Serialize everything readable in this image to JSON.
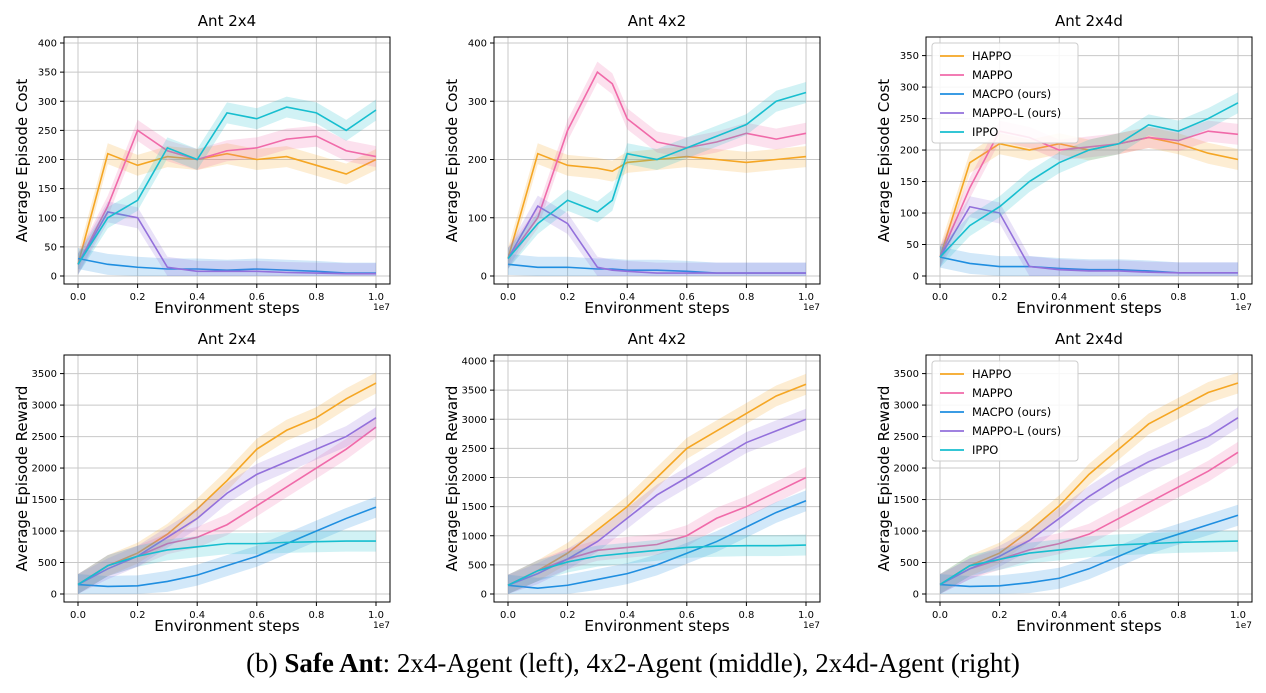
{
  "caption": {
    "prefix": "(b) ",
    "bold": "Safe Ant",
    "rest": ": 2x4-Agent (left), 4x2-Agent (middle), 2x4d-Agent (right)"
  },
  "colors": {
    "HAPPO": "#f5a623",
    "MAPPO": "#f06aa9",
    "MACPO (ours)": "#1f8ee0",
    "MAPPO-L (ours)": "#9370db",
    "IPPO": "#17becf"
  },
  "chart_data": [
    {
      "type": "line",
      "title": "Ant 2x4",
      "xlabel": "Environment steps",
      "ylabel": "Average Episode Cost",
      "x_multiplier": "1e7",
      "xlim": [
        0,
        1.0
      ],
      "ylim": [
        0,
        400
      ],
      "xticks": [
        "0.0",
        "0.2",
        "0.4",
        "0.6",
        "0.8",
        "1.0"
      ],
      "yticks": [
        0,
        50,
        100,
        150,
        200,
        250,
        300,
        350,
        400
      ],
      "grid": true,
      "legend": null,
      "x": [
        0,
        0.1,
        0.2,
        0.3,
        0.4,
        0.5,
        0.6,
        0.7,
        0.8,
        0.9,
        1.0
      ],
      "series": [
        {
          "name": "HAPPO",
          "values": [
            20,
            210,
            190,
            205,
            200,
            210,
            200,
            205,
            190,
            175,
            200
          ]
        },
        {
          "name": "MAPPO",
          "values": [
            20,
            120,
            250,
            215,
            200,
            215,
            220,
            235,
            240,
            215,
            205
          ]
        },
        {
          "name": "MACPO (ours)",
          "values": [
            30,
            20,
            15,
            12,
            12,
            10,
            12,
            10,
            8,
            5,
            5
          ]
        },
        {
          "name": "MAPPO-L (ours)",
          "values": [
            20,
            110,
            100,
            15,
            8,
            8,
            8,
            6,
            5,
            4,
            4
          ]
        },
        {
          "name": "IPPO",
          "values": [
            20,
            100,
            130,
            220,
            200,
            280,
            270,
            290,
            280,
            250,
            285
          ]
        }
      ]
    },
    {
      "type": "line",
      "title": "Ant 4x2",
      "xlabel": "Environment steps",
      "ylabel": "Average Episode Cost",
      "x_multiplier": "1e7",
      "xlim": [
        0,
        1.0
      ],
      "ylim": [
        0,
        400
      ],
      "xticks": [
        "0.0",
        "0.2",
        "0.4",
        "0.6",
        "0.8",
        "1.0"
      ],
      "yticks": [
        0,
        100,
        200,
        300,
        400
      ],
      "grid": true,
      "legend": null,
      "x": [
        0,
        0.1,
        0.2,
        0.3,
        0.35,
        0.4,
        0.5,
        0.6,
        0.7,
        0.8,
        0.9,
        1.0
      ],
      "series": [
        {
          "name": "HAPPO",
          "values": [
            30,
            210,
            190,
            185,
            180,
            195,
            200,
            205,
            200,
            195,
            200,
            205
          ]
        },
        {
          "name": "MAPPO",
          "values": [
            30,
            100,
            250,
            350,
            330,
            270,
            230,
            220,
            230,
            245,
            235,
            245
          ]
        },
        {
          "name": "MACPO (ours)",
          "values": [
            20,
            15,
            15,
            12,
            12,
            10,
            10,
            8,
            5,
            5,
            5,
            5
          ]
        },
        {
          "name": "MAPPO-L (ours)",
          "values": [
            30,
            120,
            90,
            15,
            10,
            8,
            5,
            5,
            5,
            5,
            5,
            5
          ]
        },
        {
          "name": "IPPO",
          "values": [
            30,
            90,
            130,
            110,
            130,
            210,
            200,
            220,
            240,
            260,
            300,
            315
          ]
        }
      ]
    },
    {
      "type": "line",
      "title": "Ant 2x4d",
      "xlabel": "Environment steps",
      "ylabel": "Average Episode Cost",
      "x_multiplier": "1e7",
      "xlim": [
        0,
        1.0
      ],
      "ylim": [
        0,
        370
      ],
      "xticks": [
        "0.0",
        "0.2",
        "0.4",
        "0.6",
        "0.8",
        "1.0"
      ],
      "yticks": [
        0,
        50,
        100,
        150,
        200,
        250,
        300,
        350
      ],
      "grid": true,
      "legend": "top-left",
      "x": [
        0,
        0.1,
        0.2,
        0.3,
        0.4,
        0.5,
        0.6,
        0.7,
        0.8,
        0.9,
        1.0
      ],
      "series": [
        {
          "name": "HAPPO",
          "values": [
            30,
            180,
            210,
            200,
            210,
            200,
            210,
            220,
            210,
            195,
            185
          ]
        },
        {
          "name": "MAPPO",
          "values": [
            30,
            140,
            230,
            220,
            200,
            205,
            210,
            220,
            215,
            230,
            225
          ]
        },
        {
          "name": "MACPO (ours)",
          "values": [
            30,
            20,
            15,
            15,
            12,
            10,
            10,
            8,
            5,
            5,
            5
          ]
        },
        {
          "name": "MAPPO-L (ours)",
          "values": [
            30,
            110,
            100,
            15,
            10,
            8,
            8,
            6,
            5,
            5,
            5
          ]
        },
        {
          "name": "IPPO",
          "values": [
            30,
            80,
            110,
            150,
            180,
            200,
            210,
            240,
            230,
            250,
            275
          ]
        }
      ]
    },
    {
      "type": "line",
      "title": "Ant 2x4",
      "xlabel": "Environment steps",
      "ylabel": "Average Episode Reward",
      "x_multiplier": "1e7",
      "xlim": [
        0,
        1.0
      ],
      "ylim": [
        0,
        3700
      ],
      "xticks": [
        "0.0",
        "0.2",
        "0.4",
        "0.6",
        "0.8",
        "1.0"
      ],
      "yticks": [
        0,
        500,
        1000,
        1500,
        2000,
        2500,
        3000,
        3500
      ],
      "grid": true,
      "legend": null,
      "x": [
        0,
        0.1,
        0.2,
        0.3,
        0.4,
        0.5,
        0.6,
        0.7,
        0.8,
        0.9,
        1.0
      ],
      "series": [
        {
          "name": "HAPPO",
          "values": [
            150,
            450,
            650,
            950,
            1350,
            1800,
            2300,
            2600,
            2800,
            3100,
            3350
          ]
        },
        {
          "name": "MAPPO",
          "values": [
            150,
            450,
            600,
            800,
            900,
            1100,
            1400,
            1700,
            2000,
            2300,
            2650
          ]
        },
        {
          "name": "MACPO (ours)",
          "values": [
            150,
            120,
            130,
            200,
            300,
            450,
            600,
            800,
            1000,
            1200,
            1380
          ]
        },
        {
          "name": "MAPPO-L (ours)",
          "values": [
            150,
            400,
            600,
            900,
            1200,
            1600,
            1900,
            2100,
            2300,
            2500,
            2800
          ]
        },
        {
          "name": "IPPO",
          "values": [
            150,
            450,
            600,
            700,
            750,
            800,
            800,
            820,
            830,
            840,
            840
          ]
        }
      ]
    },
    {
      "type": "line",
      "title": "Ant 4x2",
      "xlabel": "Environment steps",
      "ylabel": "Average Episode Reward",
      "x_multiplier": "1e7",
      "xlim": [
        0,
        1.0
      ],
      "ylim": [
        0,
        4000
      ],
      "xticks": [
        "0.0",
        "0.2",
        "0.4",
        "0.6",
        "0.8",
        "1.0"
      ],
      "yticks": [
        0,
        500,
        1000,
        1500,
        2000,
        2500,
        3000,
        3500,
        4000
      ],
      "grid": true,
      "legend": null,
      "x": [
        0,
        0.1,
        0.2,
        0.3,
        0.4,
        0.5,
        0.6,
        0.7,
        0.8,
        0.9,
        1.0
      ],
      "series": [
        {
          "name": "HAPPO",
          "values": [
            150,
            400,
            700,
            1100,
            1500,
            2000,
            2500,
            2800,
            3100,
            3400,
            3600
          ]
        },
        {
          "name": "MAPPO",
          "values": [
            150,
            400,
            600,
            750,
            800,
            850,
            1000,
            1300,
            1500,
            1750,
            2000
          ]
        },
        {
          "name": "MACPO (ours)",
          "values": [
            150,
            100,
            150,
            250,
            350,
            500,
            700,
            900,
            1150,
            1400,
            1600
          ]
        },
        {
          "name": "MAPPO-L (ours)",
          "values": [
            150,
            350,
            600,
            900,
            1300,
            1700,
            2000,
            2300,
            2600,
            2800,
            3000
          ]
        },
        {
          "name": "IPPO",
          "values": [
            150,
            400,
            550,
            650,
            700,
            750,
            800,
            820,
            830,
            830,
            840
          ]
        }
      ]
    },
    {
      "type": "line",
      "title": "Ant 2x4d",
      "xlabel": "Environment steps",
      "ylabel": "Average Episode Reward",
      "x_multiplier": "1e7",
      "xlim": [
        0,
        1.0
      ],
      "ylim": [
        0,
        3700
      ],
      "xticks": [
        "0.0",
        "0.2",
        "0.4",
        "0.6",
        "0.8",
        "1.0"
      ],
      "yticks": [
        0,
        500,
        1000,
        1500,
        2000,
        2500,
        3000,
        3500
      ],
      "grid": true,
      "legend": "top-left",
      "x": [
        0,
        0.1,
        0.2,
        0.3,
        0.4,
        0.5,
        0.6,
        0.7,
        0.8,
        0.9,
        1.0
      ],
      "series": [
        {
          "name": "HAPPO",
          "values": [
            150,
            450,
            650,
            1000,
            1400,
            1900,
            2300,
            2700,
            2950,
            3200,
            3350
          ]
        },
        {
          "name": "MAPPO",
          "values": [
            150,
            400,
            550,
            700,
            800,
            950,
            1200,
            1450,
            1700,
            1950,
            2250
          ]
        },
        {
          "name": "MACPO (ours)",
          "values": [
            150,
            120,
            130,
            180,
            250,
            400,
            600,
            800,
            950,
            1100,
            1250
          ]
        },
        {
          "name": "MAPPO-L (ours)",
          "values": [
            150,
            400,
            600,
            850,
            1200,
            1550,
            1850,
            2100,
            2300,
            2500,
            2800
          ]
        },
        {
          "name": "IPPO",
          "values": [
            150,
            450,
            550,
            650,
            700,
            750,
            780,
            800,
            820,
            830,
            840
          ]
        }
      ]
    }
  ]
}
